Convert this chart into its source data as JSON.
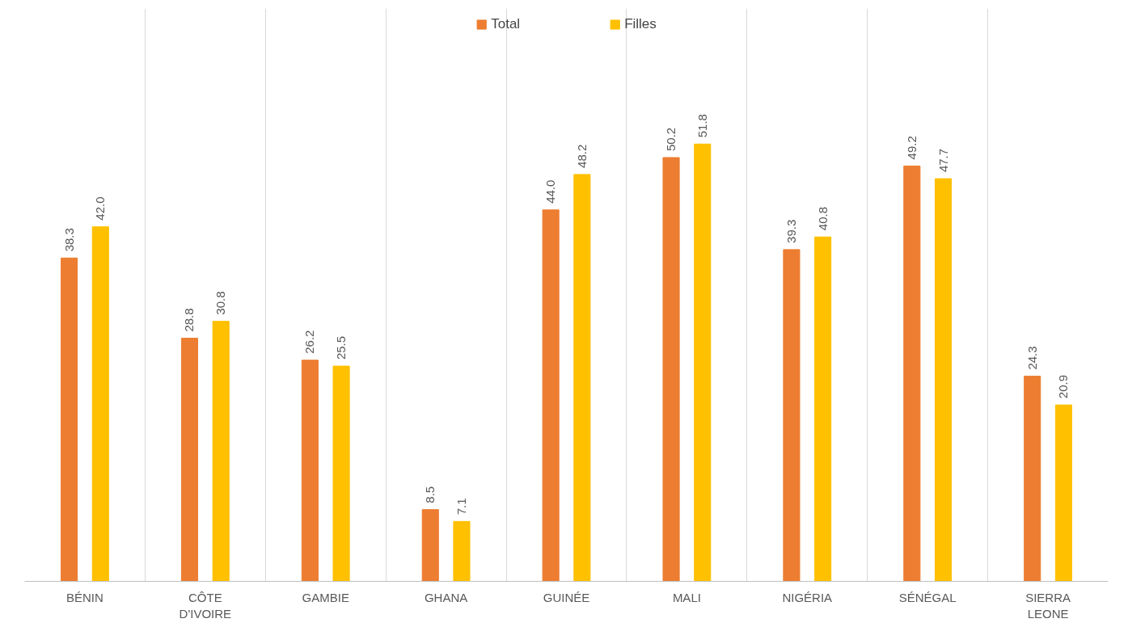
{
  "chart_data": {
    "type": "bar",
    "categories": [
      "BÉNIN",
      "CÔTE D'IVOIRE",
      "GAMBIE",
      "GHANA",
      "GUINÉE",
      "MALI",
      "NIGÉRIA",
      "SÉNÉGAL",
      "SIERRA LEONE"
    ],
    "series": [
      {
        "name": "Total",
        "color": "#ed7d31",
        "values": [
          38.3,
          28.8,
          26.2,
          8.5,
          44.0,
          50.2,
          39.3,
          49.2,
          24.3
        ],
        "value_labels": [
          "38.3",
          "28.8",
          "26.2",
          "8.5",
          "44.0",
          "50.2",
          "39.3",
          "49.2",
          "24.3"
        ]
      },
      {
        "name": "Filles",
        "color": "#ffc000",
        "values": [
          42.0,
          30.8,
          25.5,
          7.1,
          48.2,
          51.8,
          40.8,
          47.7,
          20.9
        ],
        "value_labels": [
          "42.0",
          "30.8",
          "25.5",
          "7.1",
          "48.2",
          "51.8",
          "40.8",
          "47.7",
          "20.9"
        ]
      }
    ],
    "tick_labels": "x",
    "grid": "x",
    "legend": "top"
  }
}
